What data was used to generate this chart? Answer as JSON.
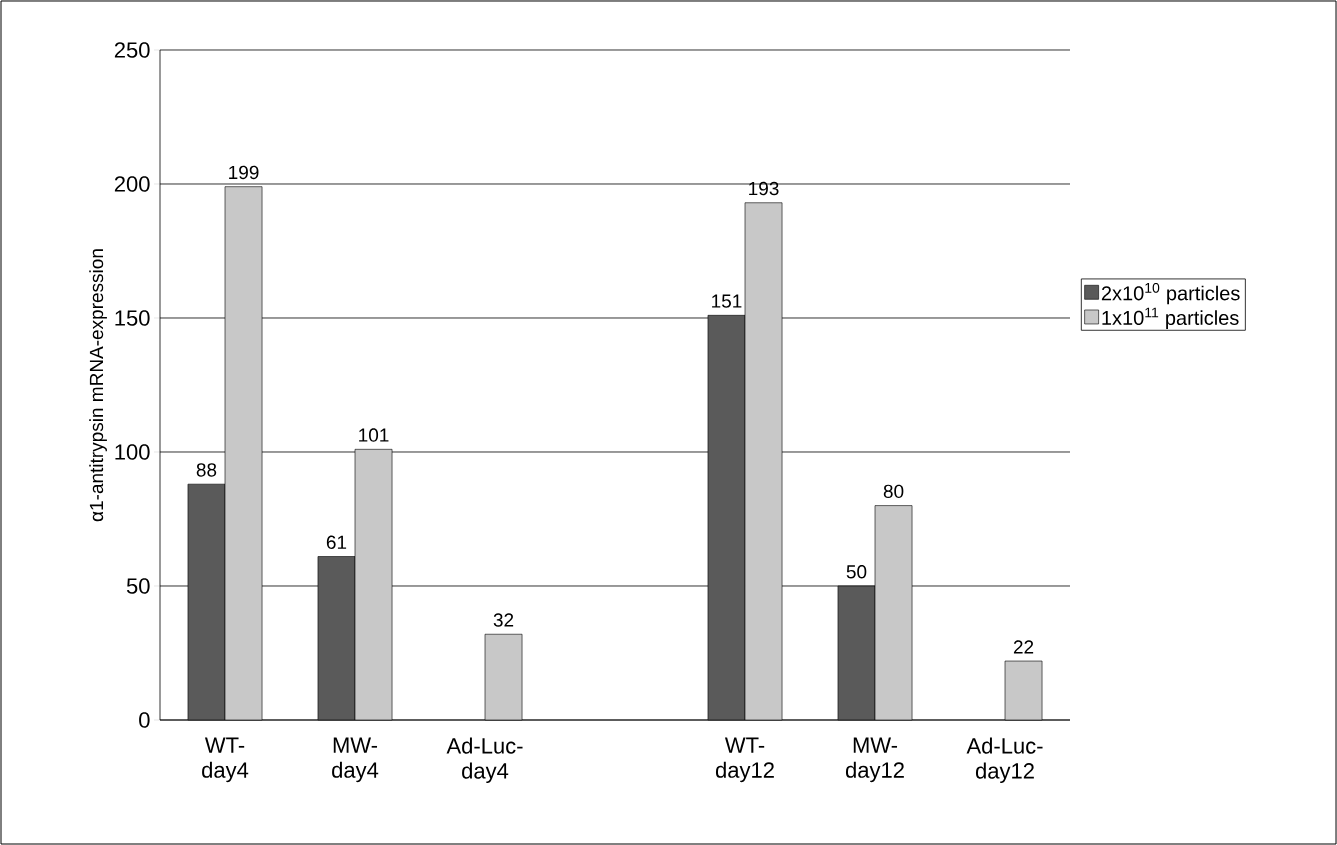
{
  "chart_data": {
    "type": "bar",
    "ylabel": "α1-antitrypsin mRNA-expression",
    "categories": [
      "WT-day4",
      "MW-day4",
      "Ad-Luc-day4",
      null,
      "WT-day12",
      "MW-day12",
      "Ad-Luc-day12"
    ],
    "series": [
      {
        "name": "2x10$^{10}$ particles",
        "color": "#5a5a5a",
        "values": [
          88,
          61,
          null,
          null,
          151,
          50,
          null
        ]
      },
      {
        "name": "1x10$^{11}$ particles",
        "color": "#c8c8c8",
        "values": [
          199,
          101,
          32,
          null,
          193,
          80,
          22
        ]
      }
    ],
    "ylim": [
      0,
      250
    ],
    "yticks": [
      0,
      50,
      100,
      150,
      200,
      250
    ],
    "grid": "y",
    "legend": "right",
    "data_labels": true
  }
}
